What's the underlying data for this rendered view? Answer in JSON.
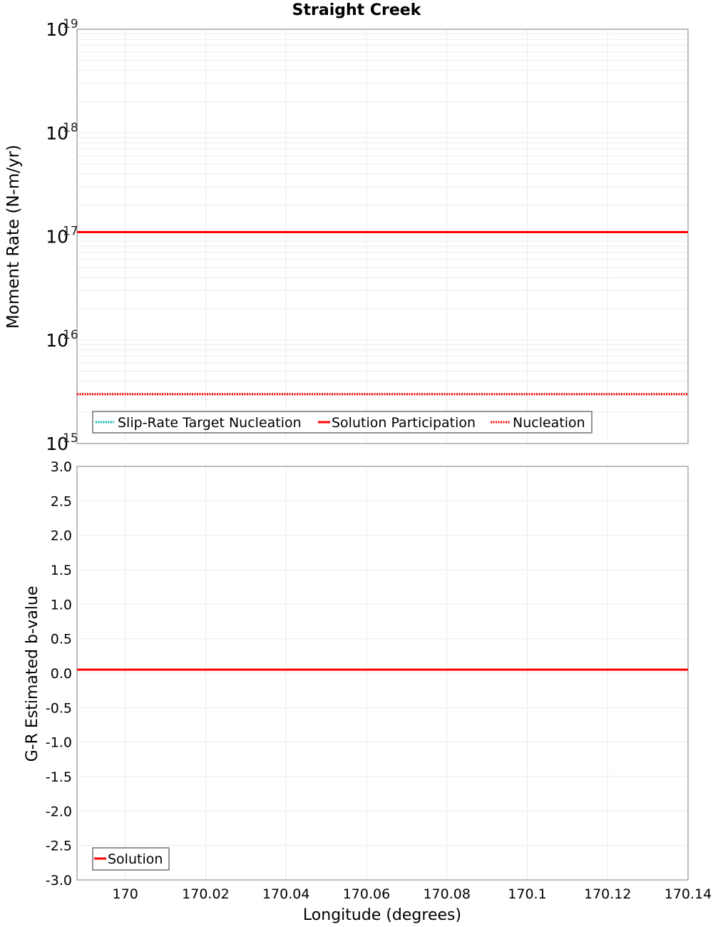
{
  "title": "Straight Creek",
  "xlabel": "Longitude (degrees)",
  "x_ticks": [
    "170",
    "170.02",
    "170.04",
    "170.06",
    "170.08",
    "170.1",
    "170.12",
    "170.14"
  ],
  "chart_data": [
    {
      "type": "line",
      "title": "Straight Creek",
      "xlabel": "Longitude (degrees)",
      "ylabel": "Moment Rate (N-m/yr)",
      "yscale": "log",
      "ylim": [
        1000000000000000.0,
        1e+19
      ],
      "xlim": [
        169.988,
        170.14
      ],
      "y_ticks": [
        "10^15",
        "10^16",
        "10^17",
        "10^18",
        "10^19"
      ],
      "grid": true,
      "legend_position": "bottom-left",
      "series": [
        {
          "name": "Slip-Rate Target Nucleation",
          "style": "dotted",
          "color": "#00b3b3",
          "x": [
            169.988,
            170.14
          ],
          "y": [
            3000000000000000.0,
            3000000000000000.0
          ]
        },
        {
          "name": "Solution Participation",
          "style": "solid",
          "color": "#ff0000",
          "x": [
            169.988,
            170.14
          ],
          "y": [
            1.1e+17,
            1.1e+17
          ]
        },
        {
          "name": "Nucleation",
          "style": "dotted",
          "color": "#ff0000",
          "x": [
            169.988,
            170.14
          ],
          "y": [
            3000000000000000.0,
            3000000000000000.0
          ]
        }
      ]
    },
    {
      "type": "line",
      "xlabel": "Longitude (degrees)",
      "ylabel": "G-R Estimated b-value",
      "ylim": [
        -3.0,
        3.0
      ],
      "xlim": [
        169.988,
        170.14
      ],
      "y_ticks": [
        "3.0",
        "2.5",
        "2.0",
        "1.5",
        "1.0",
        "0.5",
        "0.0",
        "-0.5",
        "-1.0",
        "-1.5",
        "-2.0",
        "-2.5",
        "-3.0"
      ],
      "x_ticks": [
        "170",
        "170.02",
        "170.04",
        "170.06",
        "170.08",
        "170.1",
        "170.12",
        "170.14"
      ],
      "grid": true,
      "legend_position": "bottom-left",
      "series": [
        {
          "name": "Solution",
          "style": "solid",
          "color": "#ff0000",
          "x": [
            169.988,
            170.14
          ],
          "y": [
            0.05,
            0.05
          ]
        }
      ]
    }
  ],
  "top": {
    "ylabel": "Moment Rate (N-m/yr)",
    "y_ticks": [
      {
        "base": "10",
        "exp": "19"
      },
      {
        "base": "10",
        "exp": "18"
      },
      {
        "base": "10",
        "exp": "17"
      },
      {
        "base": "10",
        "exp": "16"
      },
      {
        "base": "10",
        "exp": "15"
      }
    ],
    "legend": [
      "Slip-Rate Target Nucleation",
      "Solution Participation",
      "Nucleation"
    ]
  },
  "bottom": {
    "ylabel": "G-R Estimated b-value",
    "y_ticks": [
      "3.0",
      "2.5",
      "2.0",
      "1.5",
      "1.0",
      "0.5",
      "0.0",
      "-0.5",
      "-1.0",
      "-1.5",
      "-2.0",
      "-2.5",
      "-3.0"
    ],
    "legend": [
      "Solution"
    ]
  },
  "colors": {
    "red": "#ff0000",
    "cyan": "#00b3b3",
    "grid": "#ebebeb",
    "frame": "#a8a8a8"
  }
}
